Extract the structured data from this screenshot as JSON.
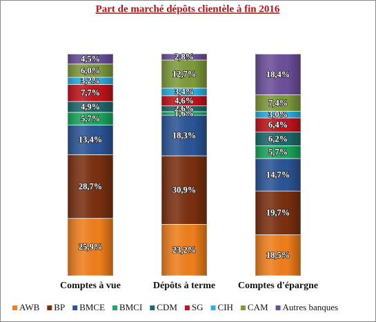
{
  "chart_data": {
    "type": "stacked-bar",
    "title": "Part de marché dépôts clientèle à fin 2016",
    "categories": [
      "Comptes à vue",
      "Dépôts à terme",
      "Comptes d'épargne"
    ],
    "series": [
      {
        "name": "AWB",
        "color": "#f07f1c",
        "values": [
          25.9,
          23.2,
          18.5
        ],
        "value_labels": [
          "25,9%",
          "23,2%",
          "18,5%"
        ]
      },
      {
        "name": "BP",
        "color": "#7a3010",
        "values": [
          28.7,
          30.9,
          19.7
        ],
        "value_labels": [
          "28,7%",
          "30,9%",
          "19,7%"
        ]
      },
      {
        "name": "BMCE",
        "color": "#2b5597",
        "values": [
          13.4,
          18.3,
          14.7
        ],
        "value_labels": [
          "13,4%",
          "18,3%",
          "14,7%"
        ]
      },
      {
        "name": "BMCI",
        "color": "#19a85c",
        "values": [
          5.7,
          1.6,
          5.7
        ],
        "value_labels": [
          "5,7%",
          "1,6%",
          "5,7%"
        ]
      },
      {
        "name": "CDM",
        "color": "#1b6b6c",
        "values": [
          4.9,
          2.6,
          6.2
        ],
        "value_labels": [
          "4,9%",
          "2,6%",
          "6,2%"
        ]
      },
      {
        "name": "SG",
        "color": "#c3141c",
        "values": [
          7.7,
          4.6,
          6.4
        ],
        "value_labels": [
          "7,7%",
          "4,6%",
          "6,4%"
        ]
      },
      {
        "name": "CIH",
        "color": "#29b1e2",
        "values": [
          3.2,
          3.4,
          3.0
        ],
        "value_labels": [
          "3,2%",
          "3,4%",
          "3,0%"
        ]
      },
      {
        "name": "CAM",
        "color": "#7e9b3b",
        "values": [
          6.0,
          12.7,
          7.4
        ],
        "value_labels": [
          "6,0%",
          "12,7%",
          "7,4%"
        ]
      },
      {
        "name": "Autres banques",
        "color": "#6c4f9b",
        "values": [
          4.5,
          2.8,
          18.4
        ],
        "value_labels": [
          "4,5%",
          "2,8%",
          "18,4%"
        ]
      }
    ]
  }
}
